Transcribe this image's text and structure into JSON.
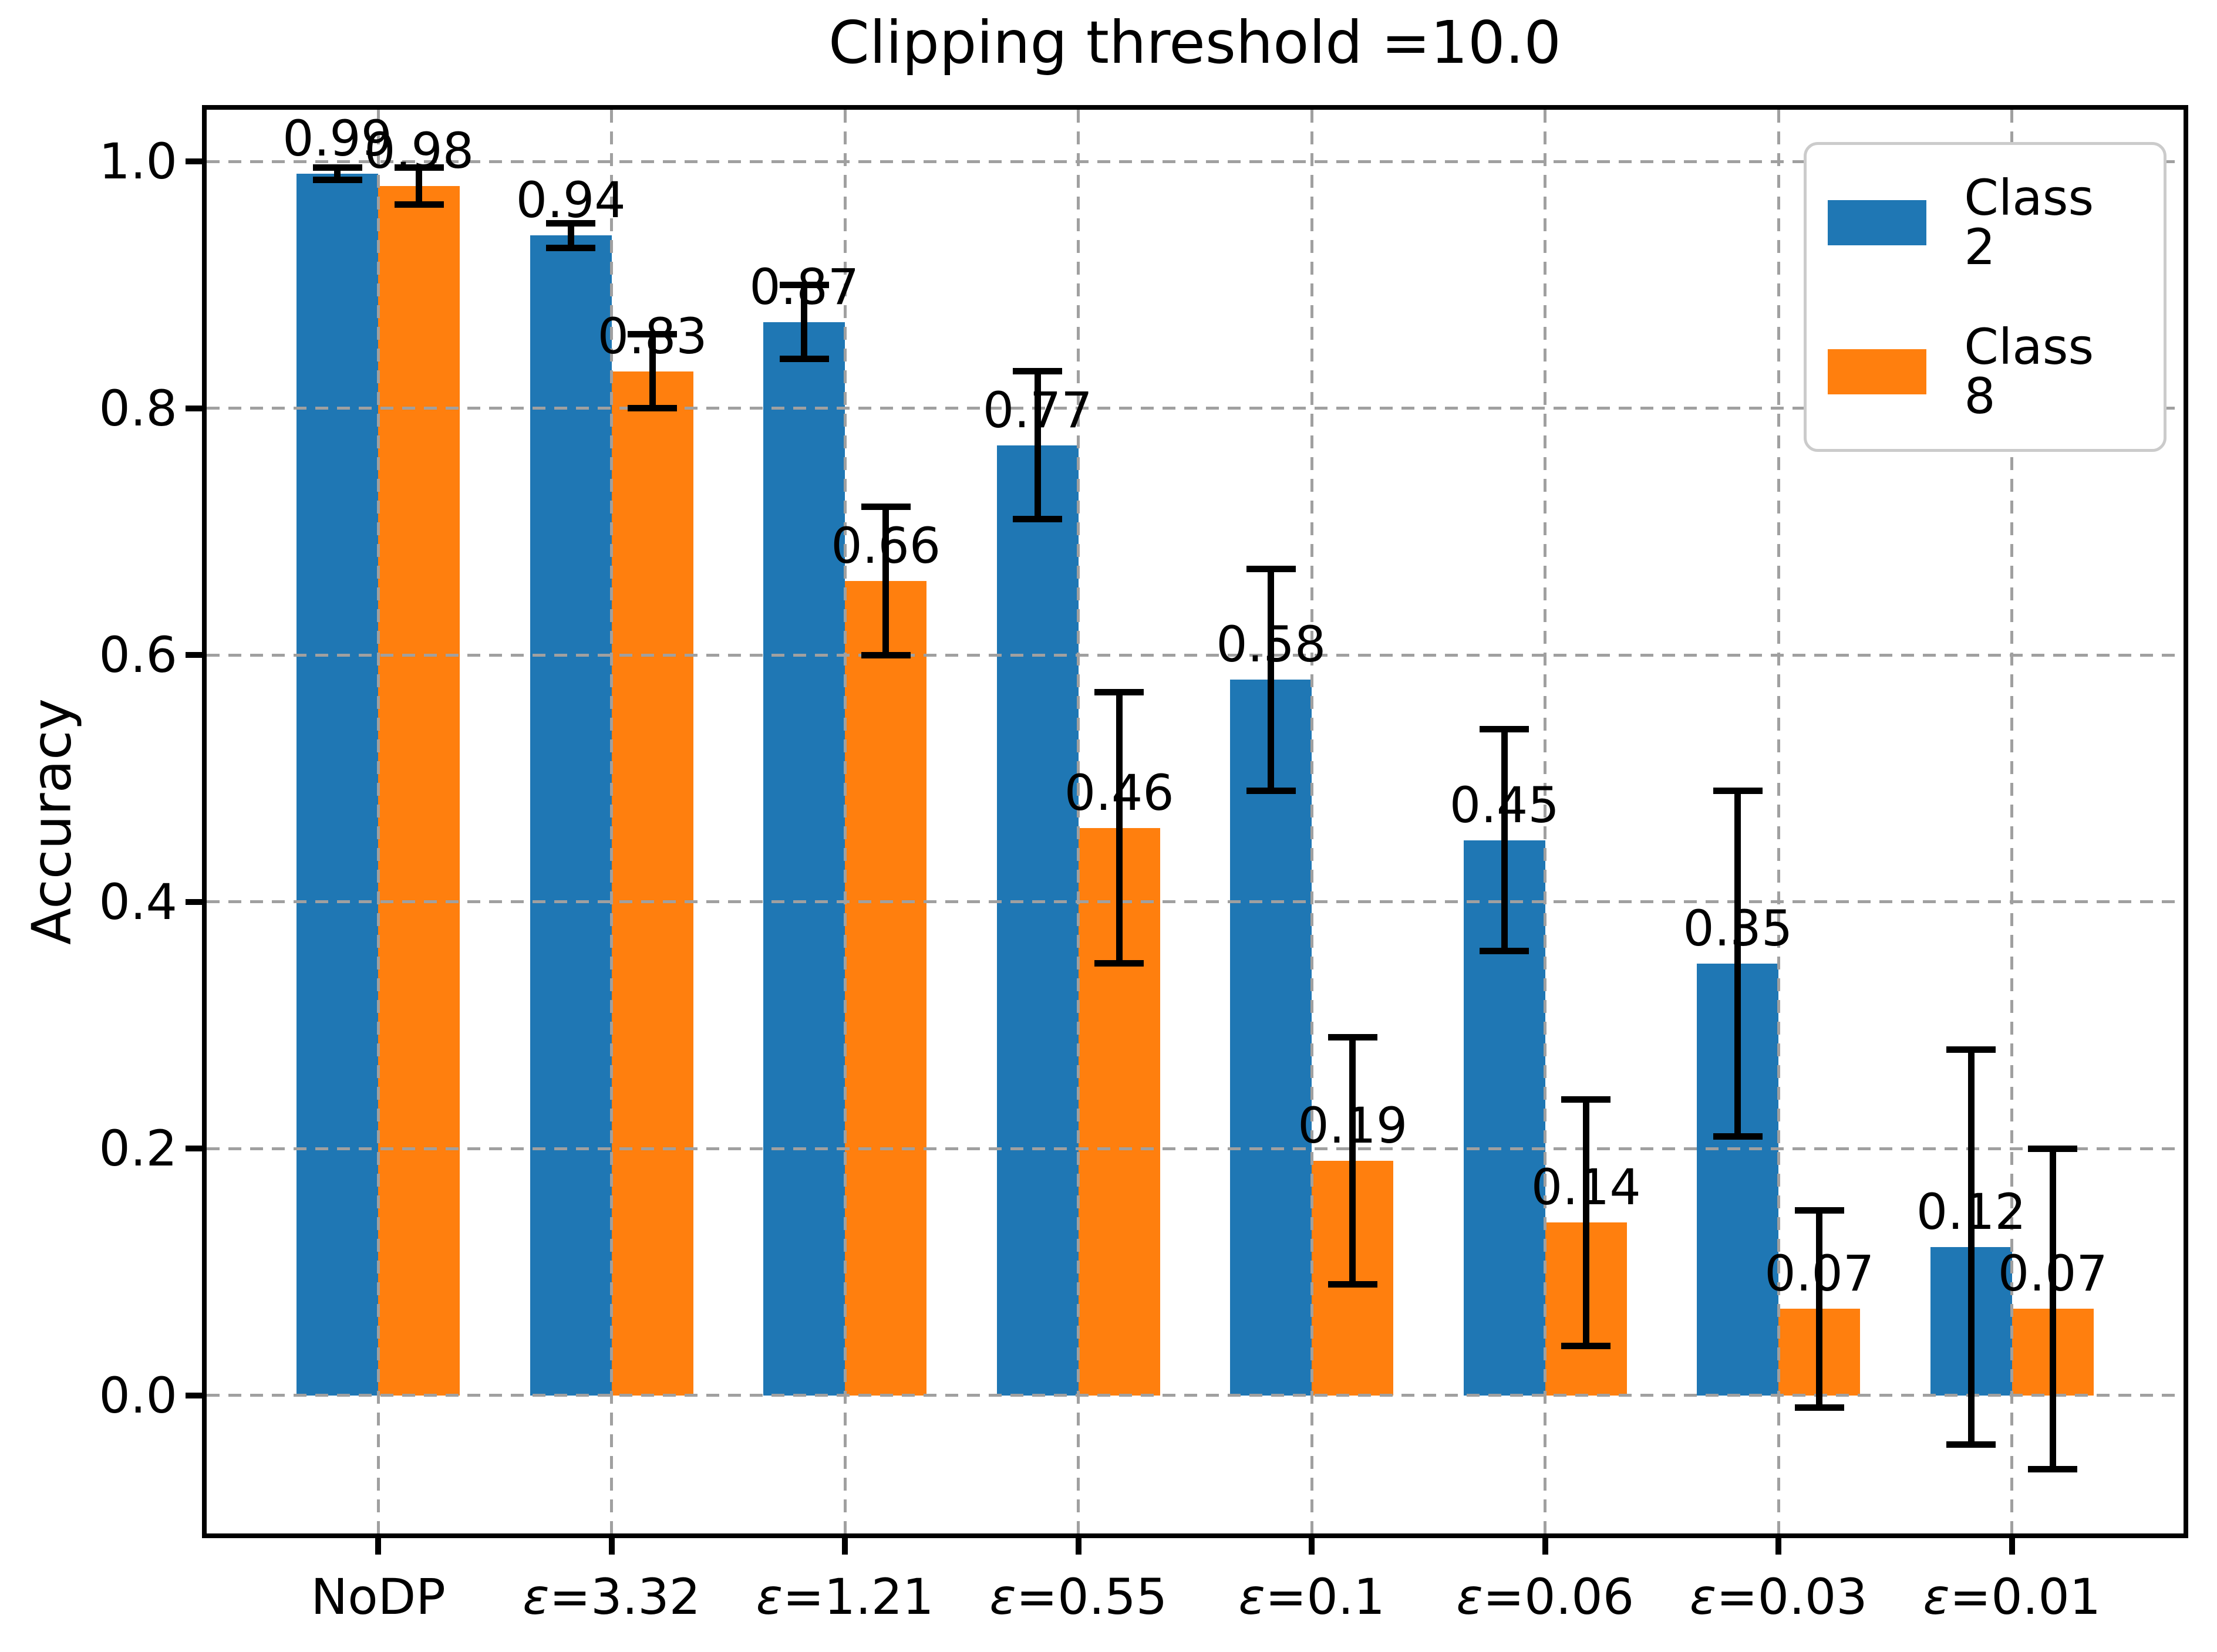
{
  "chart_data": {
    "type": "bar",
    "title": "Clipping threshold =10.0",
    "ylabel": "Accuracy",
    "xlabel": "",
    "categories": [
      "NoDP",
      "ε=3.32",
      "ε=1.21",
      "ε=0.55",
      "ε=0.1",
      "ε=0.06",
      "ε=0.03",
      "ε=0.01"
    ],
    "series": [
      {
        "name": "Class 2",
        "color": "#1f77b4",
        "values": [
          0.99,
          0.94,
          0.87,
          0.77,
          0.58,
          0.45,
          0.35,
          0.12
        ],
        "errors": [
          0.005,
          0.01,
          0.03,
          0.06,
          0.09,
          0.09,
          0.14,
          0.16
        ]
      },
      {
        "name": "Class 8",
        "color": "#ff7f0e",
        "values": [
          0.98,
          0.83,
          0.66,
          0.46,
          0.19,
          0.14,
          0.07,
          0.07
        ],
        "errors": [
          0.015,
          0.03,
          0.06,
          0.11,
          0.1,
          0.1,
          0.08,
          0.13
        ]
      }
    ],
    "bar_value_labels": [
      [
        "0.99",
        "0.94",
        "0.87",
        "0.77",
        "0.58",
        "0.45",
        "0.35",
        "0.12"
      ],
      [
        "0.98",
        "0.83",
        "0.66",
        "0.46",
        "0.19",
        "0.14",
        "0.07",
        "0.07"
      ]
    ],
    "yticks": [
      0.0,
      0.2,
      0.4,
      0.6,
      0.8,
      1.0
    ],
    "ytick_labels": [
      "0.0",
      "0.2",
      "0.4",
      "0.6",
      "0.8",
      "1.0"
    ],
    "ylim": [
      -0.112,
      1.042
    ],
    "grid": {
      "on": true,
      "style": "dashed",
      "color": "#a0a0a0"
    },
    "legend": {
      "position": "upper right",
      "entries": [
        "Class 2",
        "Class 8"
      ]
    },
    "error_bar_color": "#000000"
  }
}
